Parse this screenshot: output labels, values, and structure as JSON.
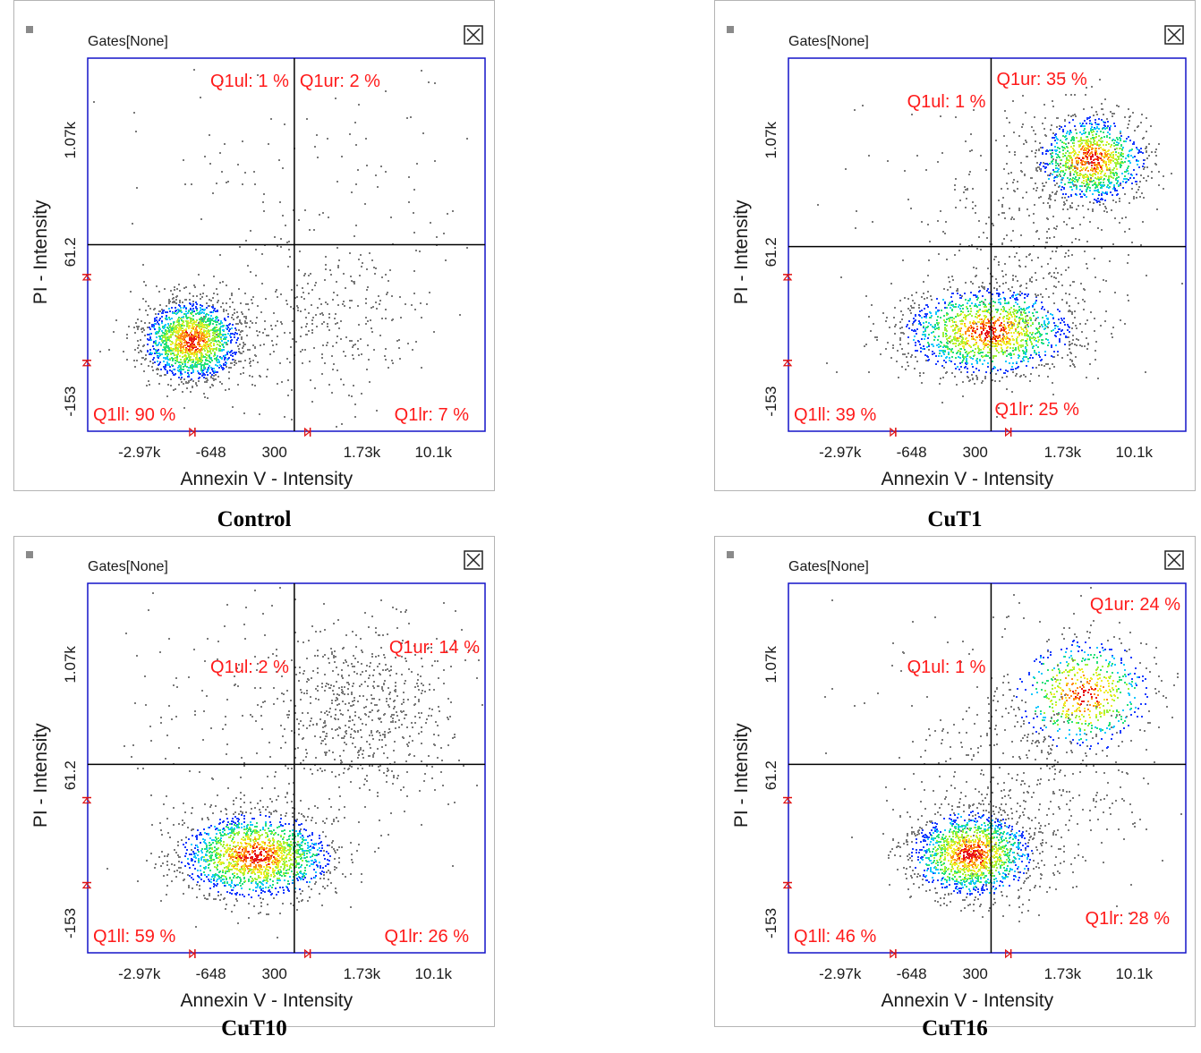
{
  "colors": {
    "axis": "#1414c8",
    "quadrant_line": "#000000",
    "quadrant_label": "#ff1a1a",
    "marker": "#e01010",
    "event": "#7a7a7a",
    "text": "#1a1a1a",
    "density": [
      "#1a3cff",
      "#15c8ff",
      "#26e07a",
      "#9ef23a",
      "#f0ec2a",
      "#ff8a1a",
      "#e8141a"
    ]
  },
  "chart_data": [
    {
      "type": "scatter",
      "caption": "Control",
      "gate_label": "Gates[None]",
      "close_icon": "close-box-icon",
      "xlabel": "Annexin V - Intensity",
      "ylabel": "PI - Intensity",
      "x_ticks": [
        "-2.97k",
        "-648",
        "300",
        "1.73k",
        "10.1k"
      ],
      "y_ticks": [
        "1.07k",
        "61.2",
        "-153"
      ],
      "quadrant_labels": {
        "ul": "Q1ul: 1 %",
        "ur": "Q1ur: 2 %",
        "ll": "Q1ll: 90 %",
        "lr": "Q1lr: 7 %"
      },
      "quadrant_percent": {
        "ul": 1,
        "ur": 2,
        "ll": 90,
        "lr": 7
      },
      "gate_fraction": {
        "x": 0.52,
        "y": 0.5
      },
      "populations": [
        {
          "cx": 0.26,
          "cy": 0.755,
          "sx": 0.062,
          "sy": 0.055,
          "n": 1700,
          "core": 0.48
        },
        {
          "cx": 0.6,
          "cy": 0.7,
          "sx": 0.13,
          "sy": 0.11,
          "n": 320,
          "core": 0
        },
        {
          "cx": 0.55,
          "cy": 0.28,
          "sx": 0.23,
          "sy": 0.17,
          "n": 110,
          "core": 0
        }
      ]
    },
    {
      "type": "scatter",
      "caption": "CuT1",
      "gate_label": "Gates[None]",
      "close_icon": "close-box-icon",
      "xlabel": "Annexin V - Intensity",
      "ylabel": "PI - Intensity",
      "x_ticks": [
        "-2.97k",
        "-648",
        "300",
        "1.73k",
        "10.1k"
      ],
      "y_ticks": [
        "1.07k",
        "61.2",
        "-153"
      ],
      "quadrant_labels": {
        "ul": "Q1ul: 1 %",
        "ur": "Q1ur: 35 %",
        "ll": "Q1ll: 39 %",
        "lr": "Q1lr: 25 %"
      },
      "quadrant_percent": {
        "ul": 1,
        "ur": 35,
        "ll": 39,
        "lr": 25
      },
      "gate_fraction": {
        "x": 0.51,
        "y": 0.505
      },
      "populations": [
        {
          "cx": 0.5,
          "cy": 0.73,
          "sx": 0.11,
          "sy": 0.06,
          "n": 1500,
          "core": 0.5
        },
        {
          "cx": 0.76,
          "cy": 0.27,
          "sx": 0.07,
          "sy": 0.06,
          "n": 1100,
          "core": 0.45
        },
        {
          "cx": 0.62,
          "cy": 0.45,
          "sx": 0.12,
          "sy": 0.15,
          "n": 300,
          "core": 0
        },
        {
          "cx": 0.45,
          "cy": 0.4,
          "sx": 0.22,
          "sy": 0.22,
          "n": 70,
          "core": 0
        }
      ]
    },
    {
      "type": "scatter",
      "caption": "CuT10",
      "gate_label": "Gates[None]",
      "close_icon": "close-box-icon",
      "xlabel": "Annexin V - Intensity",
      "ylabel": "PI - Intensity",
      "x_ticks": [
        "-2.97k",
        "-648",
        "300",
        "1.73k",
        "10.1k"
      ],
      "y_ticks": [
        "1.07k",
        "61.2",
        "-153"
      ],
      "quadrant_labels": {
        "ul": "Q1ul: 2 %",
        "ur": "Q1ur: 14 %",
        "ll": "Q1ll: 59 %",
        "lr": "Q1lr: 26 %"
      },
      "quadrant_percent": {
        "ul": 2,
        "ur": 14,
        "ll": 59,
        "lr": 26
      },
      "gate_fraction": {
        "x": 0.52,
        "y": 0.49
      },
      "populations": [
        {
          "cx": 0.42,
          "cy": 0.735,
          "sx": 0.1,
          "sy": 0.06,
          "n": 1700,
          "core": 0.5
        },
        {
          "cx": 0.7,
          "cy": 0.34,
          "sx": 0.12,
          "sy": 0.12,
          "n": 650,
          "core": 0
        },
        {
          "cx": 0.35,
          "cy": 0.35,
          "sx": 0.18,
          "sy": 0.18,
          "n": 120,
          "core": 0
        }
      ]
    },
    {
      "type": "scatter",
      "caption": "CuT16",
      "gate_label": "Gates[None]",
      "close_icon": "close-box-icon",
      "xlabel": "Annexin V - Intensity",
      "ylabel": "PI - Intensity",
      "x_ticks": [
        "-2.97k",
        "-648",
        "300",
        "1.73k",
        "10.1k"
      ],
      "y_ticks": [
        "1.07k",
        "61.2",
        "-153"
      ],
      "quadrant_labels": {
        "ul": "Q1ul: 1 %",
        "ur": "Q1ur: 24 %",
        "ll": "Q1ll: 46 %",
        "lr": "Q1lr: 28 %"
      },
      "quadrant_percent": {
        "ul": 1,
        "ur": 24,
        "ll": 46,
        "lr": 28
      },
      "gate_fraction": {
        "x": 0.51,
        "y": 0.49
      },
      "populations": [
        {
          "cx": 0.46,
          "cy": 0.73,
          "sx": 0.08,
          "sy": 0.06,
          "n": 1500,
          "core": 0.48
        },
        {
          "cx": 0.74,
          "cy": 0.3,
          "sx": 0.09,
          "sy": 0.08,
          "n": 650,
          "core": 0.05
        },
        {
          "cx": 0.62,
          "cy": 0.55,
          "sx": 0.14,
          "sy": 0.14,
          "n": 320,
          "core": 0
        },
        {
          "cx": 0.4,
          "cy": 0.35,
          "sx": 0.22,
          "sy": 0.2,
          "n": 80,
          "core": 0
        }
      ]
    }
  ]
}
